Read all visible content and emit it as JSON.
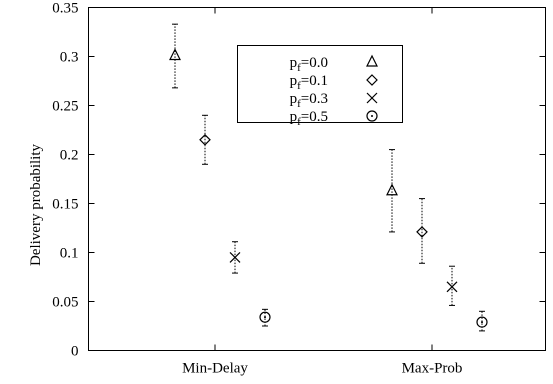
{
  "chart_data": {
    "type": "scatter",
    "ylabel": "Delivery probability",
    "xlabel": "",
    "ylim": [
      0,
      0.35
    ],
    "yticks": [
      0,
      0.05,
      0.1,
      0.15,
      0.2,
      0.25,
      0.3,
      0.35
    ],
    "ytick_labels": [
      "0",
      "0.05",
      "0.1",
      "0.15",
      "0.2",
      "0.25",
      "0.3",
      "0.35"
    ],
    "categories": [
      "Min-Delay",
      "Max-Prob"
    ],
    "legend_position": "top-center",
    "series": [
      {
        "name_base": "p",
        "name_sub": "f",
        "name_val": "=0.0",
        "marker": "triangle",
        "values": [
          0.301,
          0.163
        ],
        "err_low": [
          0.268,
          0.121
        ],
        "err_high": [
          0.333,
          0.205
        ]
      },
      {
        "name_base": "p",
        "name_sub": "f",
        "name_val": "=0.1",
        "marker": "diamond",
        "values": [
          0.215,
          0.121
        ],
        "err_low": [
          0.19,
          0.089
        ],
        "err_high": [
          0.24,
          0.155
        ]
      },
      {
        "name_base": "p",
        "name_sub": "f",
        "name_val": "=0.3",
        "marker": "x",
        "values": [
          0.095,
          0.065
        ],
        "err_low": [
          0.079,
          0.046
        ],
        "err_high": [
          0.111,
          0.086
        ]
      },
      {
        "name_base": "p",
        "name_sub": "f",
        "name_val": "=0.5",
        "marker": "circle",
        "values": [
          0.034,
          0.029
        ],
        "err_low": [
          0.025,
          0.02
        ],
        "err_high": [
          0.042,
          0.04
        ]
      }
    ]
  }
}
